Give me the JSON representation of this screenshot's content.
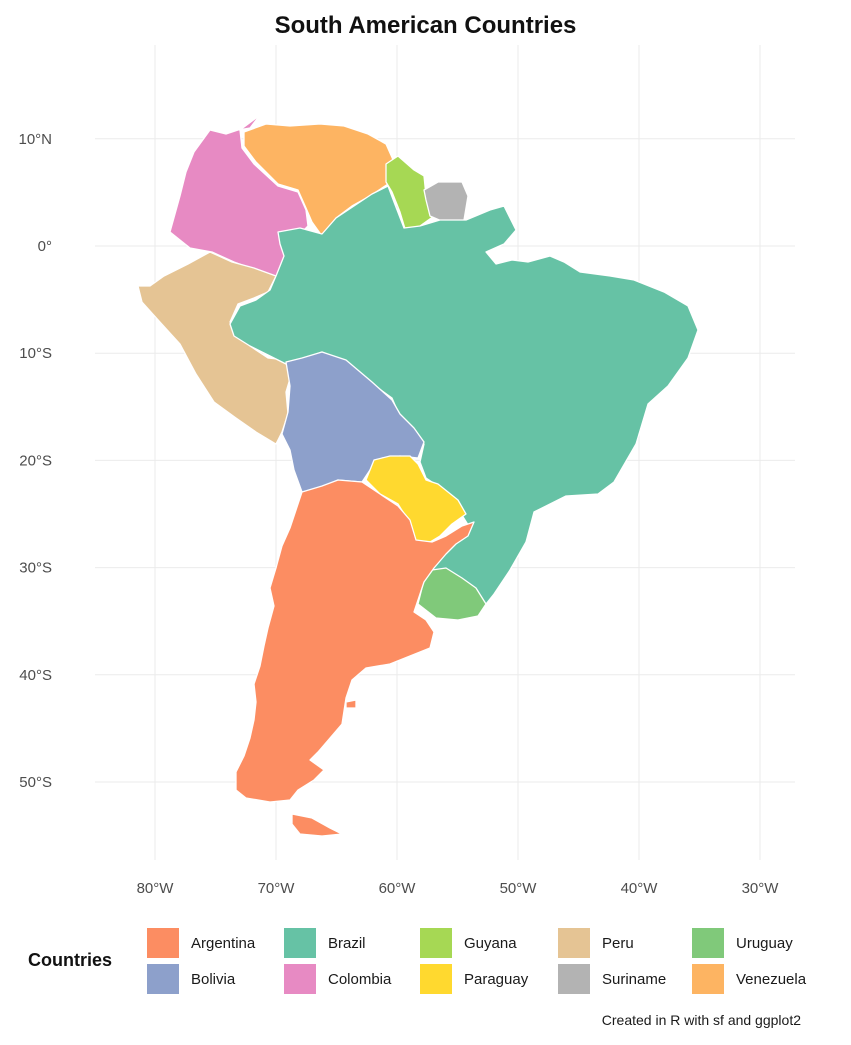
{
  "title": "South American Countries",
  "caption": "Created in R with sf and ggplot2",
  "legend": {
    "title": "Countries",
    "items": [
      {
        "name": "Argentina",
        "color": "#FC8D62"
      },
      {
        "name": "Brazil",
        "color": "#66C2A5"
      },
      {
        "name": "Guyana",
        "color": "#A6D854"
      },
      {
        "name": "Peru",
        "color": "#E5C494"
      },
      {
        "name": "Uruguay",
        "color": "#80C97A"
      },
      {
        "name": "Bolivia",
        "color": "#8DA0CB"
      },
      {
        "name": "Colombia",
        "color": "#E78AC3"
      },
      {
        "name": "Paraguay",
        "color": "#FFD92F"
      },
      {
        "name": "Suriname",
        "color": "#B3B3B3"
      },
      {
        "name": "Venezuela",
        "color": "#FDB462"
      }
    ]
  },
  "axes": {
    "lat_labels": [
      "10°N",
      "0°",
      "10°S",
      "20°S",
      "30°S",
      "40°S",
      "50°S"
    ],
    "lon_labels": [
      "80°W",
      "70°W",
      "60°W",
      "50°W",
      "40°W",
      "30°W"
    ],
    "lat_values": [
      10,
      0,
      -10,
      -20,
      -30,
      -40,
      -50
    ],
    "lon_values": [
      -80,
      -70,
      -60,
      -50,
      -40,
      -30
    ],
    "lat_range": [
      -56,
      13
    ],
    "lon_range": [
      -82,
      -29
    ]
  },
  "grid": true
}
